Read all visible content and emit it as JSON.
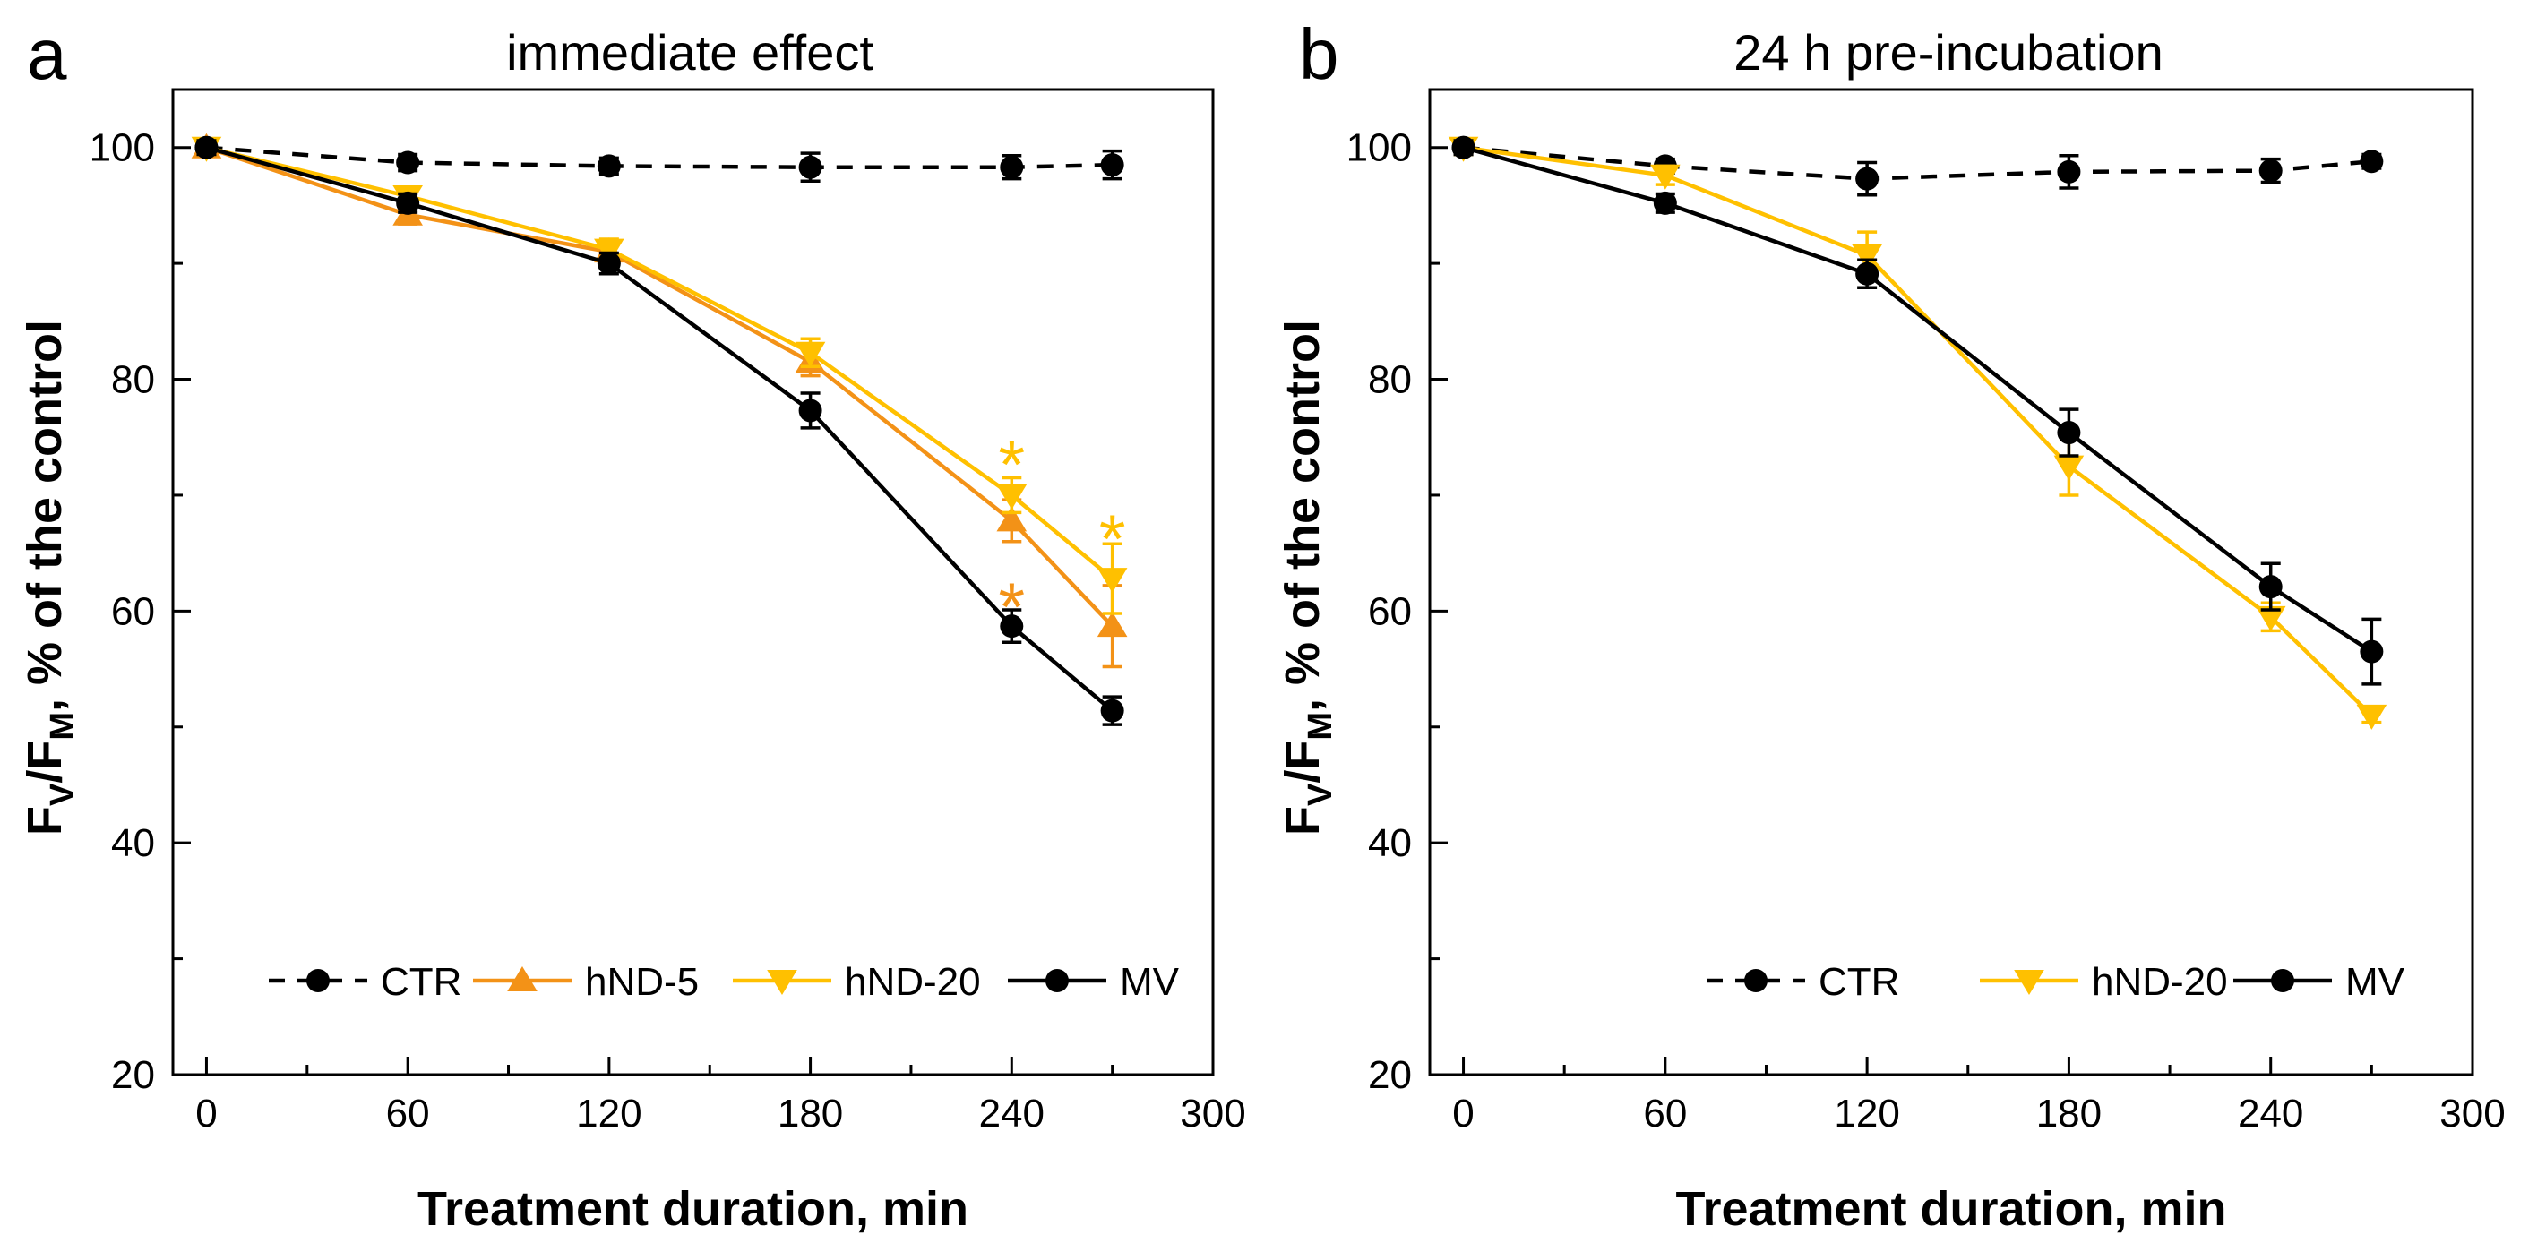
{
  "chart_data": [
    {
      "type": "line",
      "panel_letter": "a",
      "title": "immediate effect",
      "xlabel": "Treatment duration, min",
      "ylabel": {
        "main": "F",
        "sub1": "V",
        "mid": "/F",
        "sub2": "M",
        "rest": ", % of the control"
      },
      "xlim": [
        -10,
        300
      ],
      "ylim": [
        20,
        105
      ],
      "xticks": [
        0,
        60,
        120,
        180,
        240,
        300
      ],
      "yticks": [
        20,
        40,
        60,
        80,
        100
      ],
      "legend_position": "bottom",
      "x": [
        0,
        60,
        120,
        180,
        240,
        270
      ],
      "series": [
        {
          "name": "CTR",
          "color": "#000000",
          "dashed": true,
          "marker": "circle",
          "values": [
            100,
            98.7,
            98.4,
            98.3,
            98.3,
            98.5
          ],
          "errors": [
            0.6,
            0.7,
            0.7,
            1.2,
            1.0,
            1.2
          ]
        },
        {
          "name": "hND-5",
          "color": "#F39217",
          "dashed": false,
          "marker": "triangle-up",
          "values": [
            100,
            94.2,
            91.0,
            81.5,
            67.8,
            58.7
          ],
          "errors": [
            0.6,
            0.8,
            0.9,
            1.2,
            1.8,
            3.5
          ]
        },
        {
          "name": "hND-20",
          "color": "#FFC000",
          "dashed": false,
          "marker": "triangle-down",
          "values": [
            100,
            95.8,
            91.2,
            82.3,
            70.0,
            62.8
          ],
          "errors": [
            0.6,
            0.8,
            0.9,
            1.2,
            1.5,
            3.0
          ]
        },
        {
          "name": "MV",
          "color": "#000000",
          "dashed": false,
          "marker": "circle",
          "values": [
            100,
            95.2,
            90.0,
            77.3,
            58.7,
            51.4
          ],
          "errors": [
            0.6,
            0.8,
            0.9,
            1.5,
            1.4,
            1.2
          ]
        }
      ],
      "annotations": [
        {
          "text": "*",
          "x": 240,
          "y": 73.7,
          "color": "#FFC000"
        },
        {
          "text": "*",
          "x": 240,
          "y": 61.4,
          "color": "#F39217"
        },
        {
          "text": "*",
          "x": 270,
          "y": 67.3,
          "color": "#FFC000"
        }
      ]
    },
    {
      "type": "line",
      "panel_letter": "b",
      "title": "24 h pre-incubation",
      "xlabel": "Treatment duration, min",
      "ylabel": {
        "main": "F",
        "sub1": "V",
        "mid": "/F",
        "sub2": "M",
        "rest": ", % of the control"
      },
      "xlim": [
        -10,
        300
      ],
      "ylim": [
        20,
        105
      ],
      "xticks": [
        0,
        60,
        120,
        180,
        240,
        300
      ],
      "yticks": [
        20,
        40,
        60,
        80,
        100
      ],
      "legend_position": "bottom",
      "x": [
        0,
        60,
        120,
        180,
        240,
        270
      ],
      "series": [
        {
          "name": "CTR",
          "color": "#000000",
          "dashed": true,
          "marker": "circle",
          "values": [
            100,
            98.4,
            97.3,
            97.9,
            98.0,
            98.8
          ],
          "errors": [
            0.6,
            0.6,
            1.4,
            1.4,
            1.0,
            0.6
          ]
        },
        {
          "name": "hND-20",
          "color": "#FFC000",
          "dashed": false,
          "marker": "triangle-down",
          "values": [
            100,
            97.6,
            90.7,
            72.5,
            59.5,
            51.0
          ],
          "errors": [
            0.6,
            0.8,
            2.0,
            2.5,
            1.2,
            0.6
          ]
        },
        {
          "name": "MV",
          "color": "#000000",
          "dashed": false,
          "marker": "circle",
          "values": [
            100,
            95.2,
            89.1,
            75.4,
            62.1,
            56.5
          ],
          "errors": [
            0.6,
            0.8,
            1.2,
            2.0,
            2.0,
            2.8
          ]
        }
      ],
      "annotations": []
    }
  ]
}
